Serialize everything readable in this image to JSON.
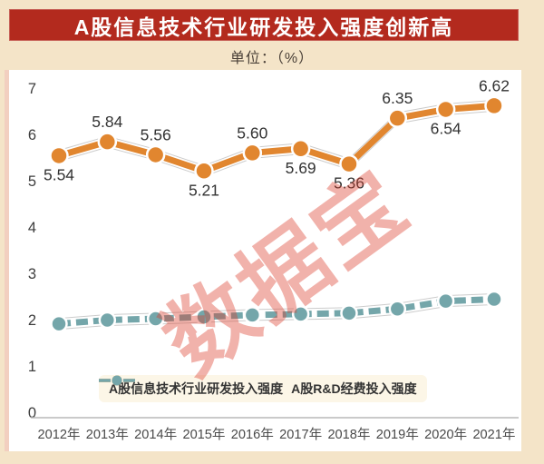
{
  "page": {
    "background_color": "#F4E4C8",
    "panel_color": "#FFFFFF"
  },
  "header": {
    "title": "A股信息技术行业研发投入强度创新高",
    "banner_color": "#B32A1E",
    "title_color": "#FFFFFF"
  },
  "subtitle": {
    "unit_label": "单位：（%）"
  },
  "watermark": {
    "text": "数据宝",
    "color": "rgba(220,62,45,0.40)"
  },
  "chart_data": {
    "type": "line",
    "categories": [
      "2012年",
      "2013年",
      "2014年",
      "2015年",
      "2016年",
      "2017年",
      "2018年",
      "2019年",
      "2020年",
      "2021年"
    ],
    "series": [
      {
        "name": "A股信息技术行业研发投入强度",
        "color": "#E1862F",
        "line_style": "solid",
        "values": [
          5.54,
          5.84,
          5.56,
          5.21,
          5.6,
          5.69,
          5.36,
          6.35,
          6.54,
          6.62
        ],
        "value_labels": [
          "5.54",
          "5.84",
          "5.56",
          "5.21",
          "5.60",
          "5.69",
          "5.36",
          "6.35",
          "6.54",
          "6.62"
        ],
        "label_placement": [
          "below",
          "above",
          "above",
          "below",
          "above",
          "below",
          "below",
          "above",
          "below",
          "above"
        ]
      },
      {
        "name": "A股R&D经费投入强度",
        "color": "#74A6AA",
        "line_style": "dashed",
        "values": [
          1.91,
          1.99,
          2.02,
          2.06,
          2.1,
          2.12,
          2.14,
          2.23,
          2.4,
          2.44
        ],
        "value_labels": [],
        "label_placement": []
      }
    ],
    "ylim": [
      0,
      7
    ],
    "yticks": [
      0,
      1,
      2,
      3,
      4,
      5,
      6,
      7
    ],
    "grid": false,
    "legend_position": "bottom-inside",
    "axis_color": "#B8B8B8",
    "tick_label_color": "#3D3D3D",
    "value_label_color": "#333333"
  }
}
